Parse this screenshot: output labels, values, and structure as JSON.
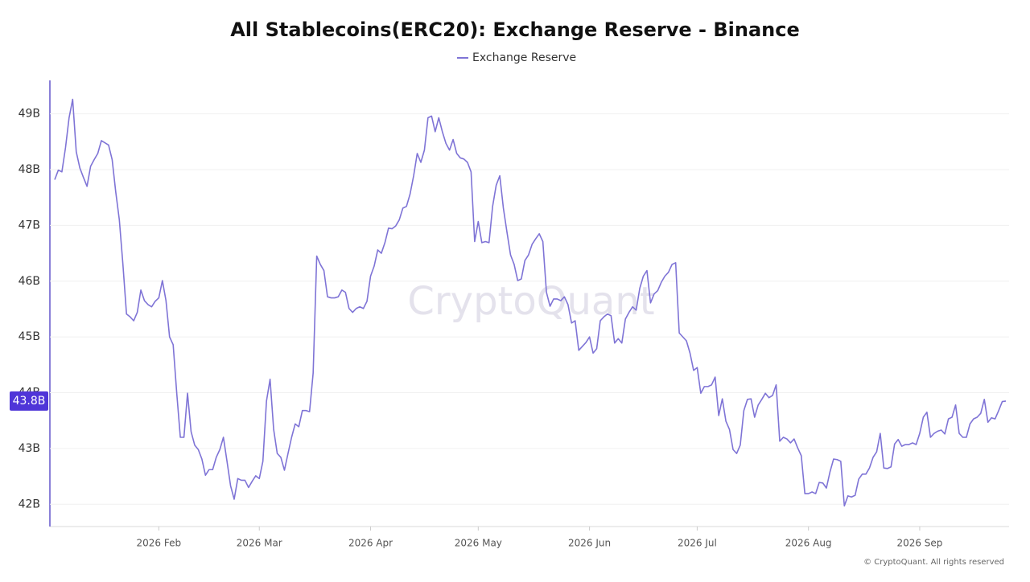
{
  "chart_data": {
    "type": "line",
    "title": "All Stablecoins(ERC20): Exchange Reserve - Binance",
    "watermark": "CryptoQuant",
    "copyright": "© CryptoQuant. All rights reserved",
    "current_label": "43.8B",
    "legend": "top",
    "grid": true,
    "ylim": [
      41.6,
      49.6
    ],
    "yticks": [
      {
        "value": 42,
        "label": "42B"
      },
      {
        "value": 43,
        "label": "43B"
      },
      {
        "value": 44,
        "label": "44B"
      },
      {
        "value": 45,
        "label": "45B"
      },
      {
        "value": 46,
        "label": "46B"
      },
      {
        "value": 47,
        "label": "47B"
      },
      {
        "value": 48,
        "label": "48B"
      },
      {
        "value": 49,
        "label": "49B"
      }
    ],
    "categories": [
      null,
      null,
      null,
      null,
      null,
      null,
      null,
      null,
      null,
      null,
      null,
      null,
      null,
      null,
      null,
      null,
      null,
      null,
      null,
      null,
      null,
      null,
      null,
      null,
      null,
      null,
      null,
      null,
      null,
      "2026 Feb",
      null,
      null,
      null,
      null,
      null,
      null,
      null,
      null,
      null,
      null,
      null,
      null,
      null,
      null,
      null,
      null,
      null,
      null,
      null,
      null,
      null,
      null,
      null,
      null,
      null,
      null,
      null,
      "2026 Mar",
      null,
      null,
      null,
      null,
      null,
      null,
      null,
      null,
      null,
      null,
      null,
      null,
      null,
      null,
      null,
      null,
      null,
      null,
      null,
      null,
      null,
      null,
      null,
      null,
      null,
      null,
      null,
      null,
      null,
      null,
      "2026 Apr",
      null,
      null,
      null,
      null,
      null,
      null,
      null,
      null,
      null,
      null,
      null,
      null,
      null,
      null,
      null,
      null,
      null,
      null,
      null,
      null,
      null,
      null,
      null,
      null,
      null,
      null,
      null,
      null,
      null,
      "2026 May",
      null,
      null,
      null,
      null,
      null,
      null,
      null,
      null,
      null,
      null,
      null,
      null,
      null,
      null,
      null,
      null,
      null,
      null,
      null,
      null,
      null,
      null,
      null,
      null,
      null,
      null,
      null,
      null,
      null,
      null,
      "2026 Jun",
      null,
      null,
      null,
      null,
      null,
      null,
      null,
      null,
      null,
      null,
      null,
      null,
      null,
      null,
      null,
      null,
      null,
      null,
      null,
      null,
      null,
      null,
      null,
      null,
      null,
      null,
      null,
      null,
      null,
      "2026 Jul",
      null,
      null,
      null,
      null,
      null,
      null,
      null,
      null,
      null,
      null,
      null,
      null,
      null,
      null,
      null,
      null,
      null,
      null,
      null,
      null,
      null,
      null,
      null,
      null,
      null,
      null,
      null,
      null,
      null,
      null,
      "2026 Aug",
      null,
      null,
      null,
      null,
      null,
      null,
      null,
      null,
      null,
      null,
      null,
      null,
      null,
      null,
      null,
      null,
      null,
      null,
      null,
      null,
      null,
      null,
      null,
      null,
      null,
      null,
      null,
      null,
      null,
      null,
      "2026 Sep",
      null,
      null,
      null,
      null,
      null,
      null,
      null,
      null,
      null,
      null,
      null,
      null,
      null,
      null,
      null,
      null,
      null,
      null,
      null,
      null,
      null,
      null,
      null,
      null
    ],
    "series": [
      {
        "name": "Exchange Reserve",
        "color": "#7f74d6",
        "values": [
          47.82,
          47.99,
          47.96,
          48.39,
          48.93,
          49.26,
          48.32,
          48.03,
          47.86,
          47.7,
          48.06,
          48.18,
          48.29,
          48.52,
          48.48,
          48.44,
          48.18,
          47.6,
          47.1,
          46.3,
          45.41,
          45.36,
          45.29,
          45.44,
          45.84,
          45.65,
          45.58,
          45.54,
          45.64,
          45.7,
          46.01,
          45.65,
          45.0,
          44.86,
          43.99,
          43.2,
          43.2,
          43.99,
          43.3,
          43.06,
          42.98,
          42.81,
          42.52,
          42.62,
          42.62,
          42.84,
          42.98,
          43.2,
          42.77,
          42.33,
          42.09,
          42.46,
          42.43,
          42.43,
          42.3,
          42.41,
          42.51,
          42.46,
          42.77,
          43.85,
          44.24,
          43.34,
          42.91,
          42.84,
          42.61,
          42.91,
          43.2,
          43.44,
          43.39,
          43.68,
          43.68,
          43.66,
          44.35,
          46.45,
          46.3,
          46.19,
          45.72,
          45.7,
          45.7,
          45.72,
          45.84,
          45.8,
          45.51,
          45.44,
          45.51,
          45.54,
          45.51,
          45.64,
          46.09,
          46.27,
          46.56,
          46.5,
          46.69,
          46.95,
          46.94,
          46.99,
          47.1,
          47.31,
          47.34,
          47.56,
          47.89,
          48.29,
          48.13,
          48.35,
          48.93,
          48.96,
          48.68,
          48.93,
          48.68,
          48.47,
          48.35,
          48.54,
          48.29,
          48.21,
          48.19,
          48.13,
          47.96,
          46.71,
          47.07,
          46.69,
          46.71,
          46.69,
          47.34,
          47.72,
          47.89,
          47.31,
          46.88,
          46.47,
          46.3,
          46.01,
          46.04,
          46.37,
          46.47,
          46.66,
          46.76,
          46.85,
          46.71,
          45.8,
          45.55,
          45.68,
          45.68,
          45.65,
          45.72,
          45.58,
          45.25,
          45.29,
          44.76,
          44.83,
          44.9,
          45.0,
          44.71,
          44.79,
          45.29,
          45.36,
          45.41,
          45.38,
          44.89,
          44.97,
          44.89,
          45.32,
          45.44,
          45.54,
          45.48,
          45.87,
          46.09,
          46.19,
          45.61,
          45.77,
          45.83,
          45.98,
          46.09,
          46.16,
          46.3,
          46.33,
          45.07,
          45.0,
          44.93,
          44.71,
          44.4,
          44.45,
          43.99,
          44.11,
          44.11,
          44.14,
          44.28,
          43.59,
          43.89,
          43.49,
          43.34,
          42.98,
          42.91,
          43.06,
          43.68,
          43.88,
          43.89,
          43.56,
          43.78,
          43.88,
          43.99,
          43.91,
          43.95,
          44.14,
          43.13,
          43.2,
          43.17,
          43.1,
          43.17,
          43.01,
          42.87,
          42.19,
          42.19,
          42.22,
          42.19,
          42.39,
          42.38,
          42.29,
          42.58,
          42.81,
          42.8,
          42.77,
          41.97,
          42.15,
          42.13,
          42.16,
          42.45,
          42.54,
          42.54,
          42.65,
          42.84,
          42.94,
          43.27,
          42.65,
          42.64,
          42.67,
          43.08,
          43.16,
          43.04,
          43.07,
          43.07,
          43.1,
          43.07,
          43.27,
          43.56,
          43.65,
          43.2,
          43.27,
          43.31,
          43.33,
          43.26,
          43.53,
          43.56,
          43.78,
          43.27,
          43.2,
          43.2,
          43.44,
          43.53,
          43.56,
          43.63,
          43.88,
          43.47,
          43.55,
          43.53,
          43.68,
          43.84,
          43.85
        ]
      }
    ]
  }
}
